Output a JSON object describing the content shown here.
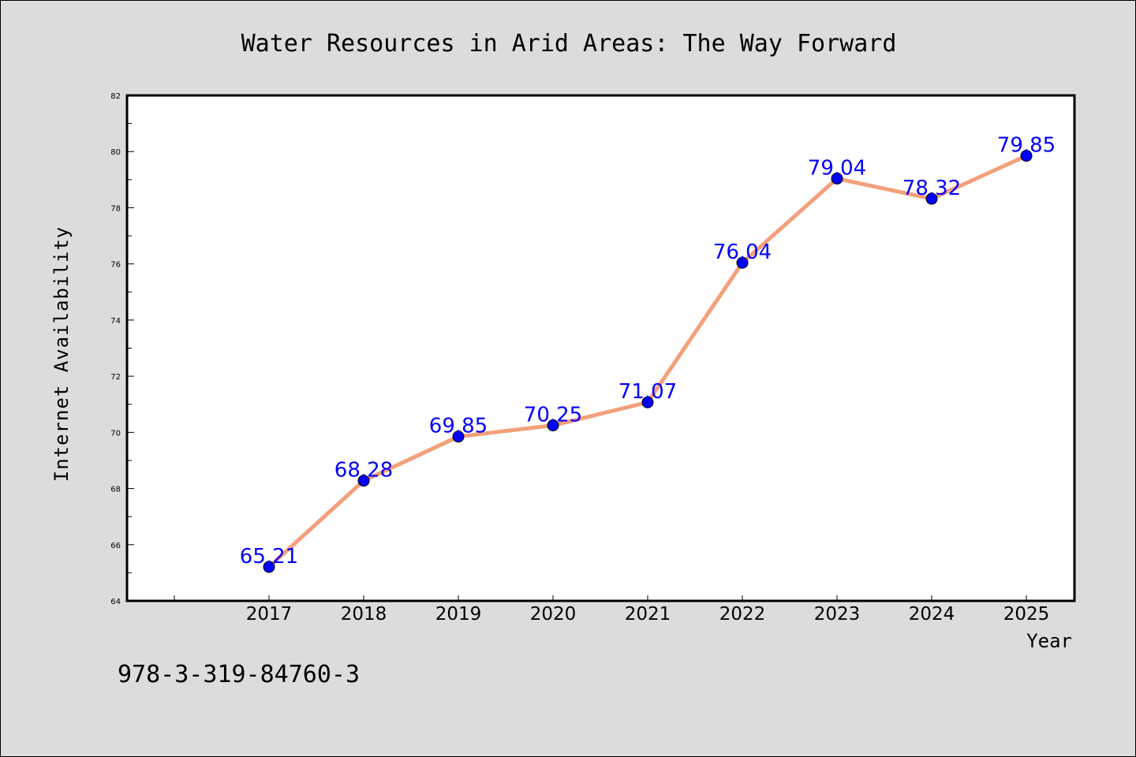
{
  "chart_data": {
    "type": "line",
    "title": "Water Resources in Arid Areas: The Way Forward",
    "xlabel": "Year",
    "ylabel": "Internet Availability",
    "categories": [
      "2017",
      "2018",
      "2019",
      "2020",
      "2021",
      "2022",
      "2023",
      "2024",
      "2025"
    ],
    "series": [
      {
        "values": [
          65.21,
          68.28,
          69.85,
          70.25,
          71.07,
          76.04,
          79.04,
          78.32,
          79.85
        ],
        "labels": [
          "65.21",
          "68.28",
          "69.85",
          "70.25",
          "71.07",
          "76.04",
          "79.04",
          "78.32",
          "79.85"
        ],
        "line_color": "#f4a07a",
        "marker_color": "#0000ff",
        "label_color": "#0000ff"
      }
    ],
    "ylim": [
      64,
      82
    ],
    "yticks": [
      "64",
      "66",
      "68",
      "70",
      "72",
      "74",
      "76",
      "78",
      "80",
      "82"
    ],
    "grid": false,
    "legend": "none"
  },
  "annotation": "978-3-319-84760-3",
  "colors": {
    "figure_background": "#dcdcdc",
    "plot_background": "#ffffff",
    "line": "#f4a07a",
    "marker": "#0000ff",
    "data_label": "#0000ff"
  }
}
